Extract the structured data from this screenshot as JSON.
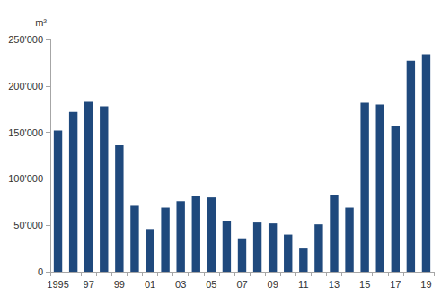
{
  "chart_data": {
    "type": "bar",
    "y_label": "m²",
    "categories": [
      "1995",
      null,
      "97",
      null,
      "99",
      null,
      "01",
      null,
      "03",
      null,
      "05",
      null,
      "07",
      null,
      "09",
      null,
      "11",
      null,
      "13",
      null,
      "15",
      null,
      "17",
      null,
      "19"
    ],
    "values": [
      152000,
      172000,
      183000,
      178000,
      136000,
      71000,
      46000,
      69000,
      76000,
      82000,
      80000,
      55000,
      36000,
      53000,
      52000,
      40000,
      25000,
      51000,
      83000,
      69000,
      182000,
      180000,
      157000,
      227000,
      234000
    ],
    "color": "#1f497d",
    "ylim": [
      0,
      250000
    ],
    "yticks": [
      0,
      {
        "value": 50000,
        "label": "50'000"
      },
      {
        "value": 100000,
        "label": "100'000"
      },
      {
        "value": 150000,
        "label": "150'000"
      },
      {
        "value": 200000,
        "label": "200'000"
      },
      {
        "value": 250000,
        "label": "250'000"
      }
    ],
    "grid": false
  }
}
